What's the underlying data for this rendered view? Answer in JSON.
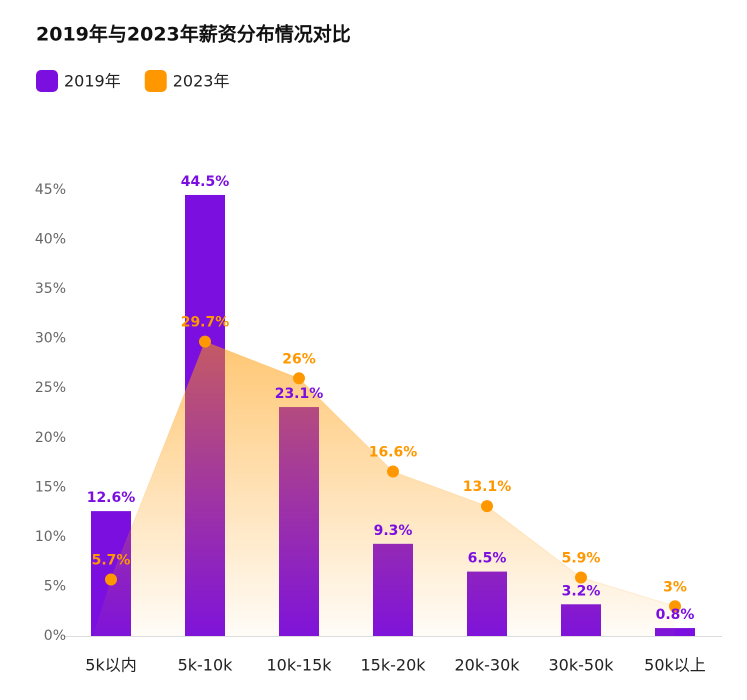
{
  "chart_data": {
    "type": "bar",
    "title": "2019年与2023年薪资分布情况对比",
    "categories": [
      "5k以内",
      "5k-10k",
      "10k-15k",
      "15k-20k",
      "20k-30k",
      "30k-50k",
      "50k以上"
    ],
    "series": [
      {
        "name": "2019年",
        "type": "bar",
        "color": "#7b0fe0",
        "values": [
          12.6,
          44.5,
          23.1,
          9.3,
          6.5,
          3.2,
          0.8
        ],
        "value_labels": [
          "12.6%",
          "44.5%",
          "23.1%",
          "9.3%",
          "6.5%",
          "3.2%",
          "0.8%"
        ]
      },
      {
        "name": "2023年",
        "type": "area",
        "color": "#ff9800",
        "values": [
          5.7,
          29.7,
          26,
          16.6,
          13.1,
          5.9,
          3
        ],
        "value_labels": [
          "5.7%",
          "29.7%",
          "26%",
          "16.6%",
          "13.1%",
          "5.9%",
          "3%"
        ]
      }
    ],
    "ylim": [
      0,
      45
    ],
    "yticks": [
      {
        "value": 0,
        "label": "0%"
      },
      {
        "value": 5,
        "label": "5%"
      },
      {
        "value": 10,
        "label": "10%"
      },
      {
        "value": 15,
        "label": "15%"
      },
      {
        "value": 20,
        "label": "20%"
      },
      {
        "value": 25,
        "label": "25%"
      },
      {
        "value": 30,
        "label": "30%"
      },
      {
        "value": 35,
        "label": "35%"
      },
      {
        "value": 40,
        "label": "40%"
      },
      {
        "value": 45,
        "label": "45%"
      }
    ],
    "grid": false
  }
}
